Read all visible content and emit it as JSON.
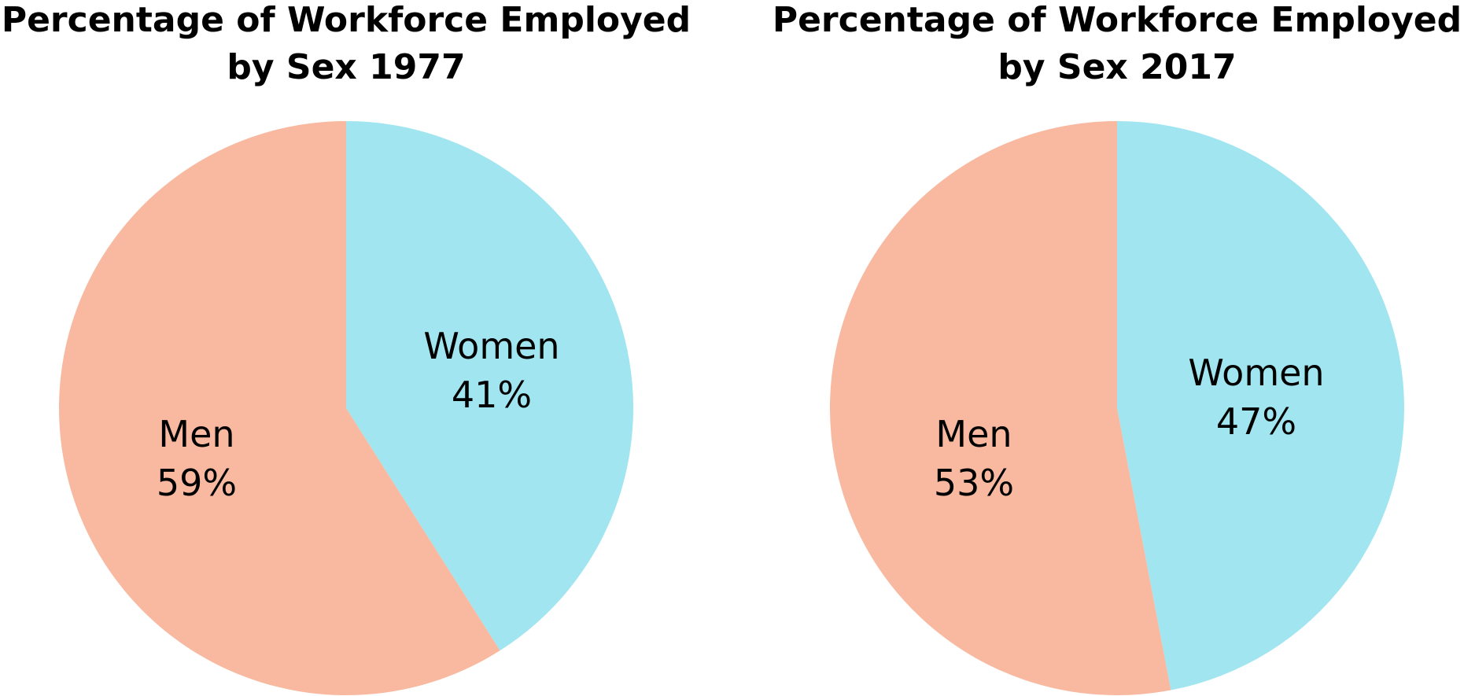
{
  "chart_data": [
    {
      "type": "pie",
      "title_lines": [
        "Percentage of Workforce Employed",
        "by Sex 1977"
      ],
      "start_angle_deg": 0,
      "direction": "clockwise",
      "slices": [
        {
          "label": "Women",
          "value": 41,
          "value_label": "41%",
          "color": "#a0e5f0"
        },
        {
          "label": "Men",
          "value": 59,
          "value_label": "59%",
          "color": "#f8b9a0"
        }
      ]
    },
    {
      "type": "pie",
      "title_lines": [
        "Percentage of Workforce Employed",
        "by Sex 2017"
      ],
      "start_angle_deg": 0,
      "direction": "clockwise",
      "slices": [
        {
          "label": "Women",
          "value": 47,
          "value_label": "47%",
          "color": "#a0e5f0"
        },
        {
          "label": "Men",
          "value": 53,
          "value_label": "53%",
          "color": "#f8b9a0"
        }
      ]
    }
  ]
}
